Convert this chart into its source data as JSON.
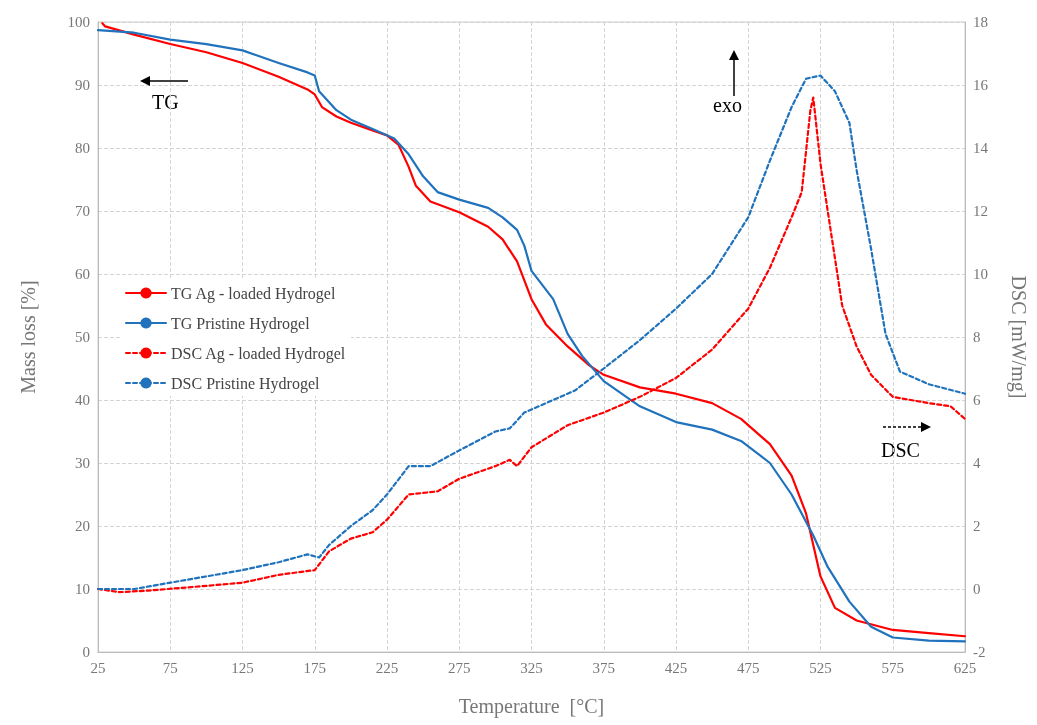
{
  "chart_data": {
    "type": "line",
    "xlabel": "Temperature  [°C]",
    "ylabel": "Mass loss [%]",
    "y2label": "DSC [mW/mg]",
    "xlim": [
      25,
      625
    ],
    "xticks": [
      25,
      75,
      125,
      175,
      225,
      275,
      325,
      375,
      425,
      475,
      525,
      575,
      625
    ],
    "ylim": [
      0,
      100
    ],
    "yticks": [
      0,
      10,
      20,
      30,
      40,
      50,
      60,
      70,
      80,
      90,
      100
    ],
    "y2lim": [
      -2,
      18
    ],
    "y2ticks": [
      -2,
      0,
      2,
      4,
      6,
      8,
      10,
      12,
      14,
      16,
      18
    ],
    "grid": true,
    "legend": "left",
    "marker": "none",
    "annotations": [
      "TG",
      "exo",
      "DSC"
    ],
    "series": [
      {
        "name": "TG Ag - loaded Hydrogel",
        "color": "#ff0000",
        "line_style": "solid",
        "x": [
          28,
          30,
          50,
          75,
          100,
          125,
          150,
          170,
          175,
          180,
          190,
          200,
          215,
          225,
          233,
          240,
          245,
          255,
          275,
          295,
          305,
          315,
          325,
          335,
          350,
          365,
          375,
          400,
          425,
          450,
          470,
          490,
          505,
          515,
          525,
          535,
          550,
          575,
          600,
          625
        ],
        "values": [
          99.8,
          99.3,
          98.0,
          96.5,
          95.2,
          93.5,
          91.3,
          89.3,
          88.5,
          86.5,
          85,
          84,
          82.8,
          82,
          80.5,
          77,
          74,
          71.5,
          69.8,
          67.5,
          65.5,
          62,
          56,
          52,
          48.5,
          45.5,
          44,
          42,
          41,
          39.5,
          37,
          33,
          28,
          22,
          12,
          7,
          5,
          3.5,
          3,
          2.5
        ]
      },
      {
        "name": "TG Pristine Hydrogel",
        "color": "#1f72bb",
        "line_style": "solid",
        "x": [
          25,
          50,
          75,
          100,
          125,
          150,
          170,
          175,
          178,
          190,
          200,
          215,
          230,
          240,
          250,
          260,
          275,
          295,
          305,
          315,
          320,
          325,
          340,
          350,
          360,
          375,
          400,
          425,
          450,
          470,
          490,
          505,
          520,
          530,
          545,
          560,
          575,
          600,
          625
        ],
        "values": [
          98.7,
          98.3,
          97.2,
          96.5,
          95.5,
          93.5,
          92,
          91.5,
          89,
          86,
          84.5,
          83,
          81.5,
          79,
          75.5,
          73,
          71.8,
          70.5,
          69,
          67,
          64.5,
          60.5,
          56,
          50.5,
          47,
          43,
          39,
          36.5,
          35.3,
          33.5,
          30,
          25,
          18.5,
          13.5,
          8,
          4,
          2.3,
          1.8,
          1.7
        ]
      },
      {
        "name": "DSC Ag - loaded Hydrogel",
        "color": "#ff0000",
        "line_style": "dashed",
        "axis": "y2",
        "x": [
          25,
          40,
          60,
          100,
          125,
          150,
          175,
          185,
          200,
          215,
          225,
          240,
          260,
          275,
          300,
          310,
          315,
          325,
          350,
          375,
          400,
          425,
          450,
          475,
          490,
          505,
          512,
          518,
          520,
          525,
          530,
          540,
          550,
          560,
          575,
          600,
          615,
          625
        ],
        "values": [
          0,
          -0.1,
          -0.05,
          0.1,
          0.2,
          0.45,
          0.6,
          1.2,
          1.6,
          1.8,
          2.2,
          3,
          3.1,
          3.5,
          3.9,
          4.1,
          3.9,
          4.5,
          5.2,
          5.6,
          6.1,
          6.7,
          7.6,
          8.9,
          10.2,
          11.8,
          12.6,
          15.2,
          15.6,
          13.5,
          12,
          9,
          7.7,
          6.8,
          6.1,
          5.9,
          5.8,
          5.4
        ]
      },
      {
        "name": "DSC Pristine Hydrogel",
        "color": "#1f72bb",
        "line_style": "dashed",
        "axis": "y2",
        "x": [
          25,
          50,
          75,
          100,
          125,
          150,
          170,
          178,
          185,
          200,
          215,
          225,
          240,
          255,
          275,
          300,
          310,
          320,
          340,
          355,
          375,
          400,
          425,
          450,
          475,
          490,
          505,
          515,
          525,
          535,
          545,
          550,
          560,
          570,
          580,
          600,
          625
        ],
        "values": [
          0,
          0,
          0.2,
          0.4,
          0.6,
          0.85,
          1.1,
          1.0,
          1.4,
          2.0,
          2.5,
          3.0,
          3.9,
          3.9,
          4.4,
          5.0,
          5.1,
          5.6,
          6.0,
          6.3,
          7.0,
          7.9,
          8.9,
          10.0,
          11.8,
          13.6,
          15.3,
          16.2,
          16.3,
          15.8,
          14.8,
          13.3,
          10.8,
          8.1,
          6.9,
          6.5,
          6.2
        ]
      }
    ]
  }
}
